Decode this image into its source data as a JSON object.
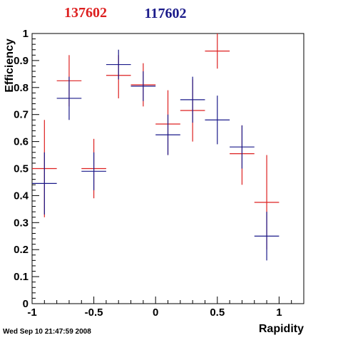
{
  "chart_data": {
    "type": "scatter",
    "title": "",
    "xlabel": "Rapidity",
    "ylabel": "Efficiency",
    "xlim": [
      -1,
      1.2
    ],
    "ylim": [
      0,
      1
    ],
    "grid": true,
    "x_ticks": [
      -1,
      -0.5,
      0,
      0.5,
      1
    ],
    "x_tick_labels": [
      "-1",
      "-0.5",
      "0",
      "0.5",
      "1"
    ],
    "y_ticks": [
      0,
      0.1,
      0.2,
      0.3,
      0.4,
      0.5,
      0.6,
      0.7,
      0.8,
      0.9,
      1
    ],
    "y_tick_labels": [
      "0",
      "0.1",
      "0.2",
      "0.3",
      "0.4",
      "0.5",
      "0.6",
      "0.7",
      "0.8",
      "0.9",
      "1"
    ],
    "legend_placement": "top",
    "series": [
      {
        "name": "137602",
        "color": "#dd2020",
        "points": [
          {
            "x": -0.9,
            "y": 0.5,
            "xerr": 0.1,
            "ylow": 0.32,
            "yhigh": 0.68
          },
          {
            "x": -0.7,
            "y": 0.825,
            "xerr": 0.1,
            "ylow": 0.73,
            "yhigh": 0.92
          },
          {
            "x": -0.5,
            "y": 0.5,
            "xerr": 0.1,
            "ylow": 0.39,
            "yhigh": 0.61
          },
          {
            "x": -0.3,
            "y": 0.845,
            "xerr": 0.1,
            "ylow": 0.76,
            "yhigh": 0.92
          },
          {
            "x": -0.1,
            "y": 0.81,
            "xerr": 0.1,
            "ylow": 0.73,
            "yhigh": 0.89
          },
          {
            "x": 0.1,
            "y": 0.665,
            "xerr": 0.1,
            "ylow": 0.55,
            "yhigh": 0.79
          },
          {
            "x": 0.3,
            "y": 0.715,
            "xerr": 0.1,
            "ylow": 0.6,
            "yhigh": 0.83
          },
          {
            "x": 0.5,
            "y": 0.935,
            "xerr": 0.1,
            "ylow": 0.87,
            "yhigh": 1.0
          },
          {
            "x": 0.7,
            "y": 0.555,
            "xerr": 0.1,
            "ylow": 0.44,
            "yhigh": 0.66
          },
          {
            "x": 0.9,
            "y": 0.375,
            "xerr": 0.1,
            "ylow": 0.2,
            "yhigh": 0.55
          }
        ]
      },
      {
        "name": "117602",
        "color": "#1a1a8a",
        "points": [
          {
            "x": -0.9,
            "y": 0.445,
            "xerr": 0.1,
            "ylow": 0.33,
            "yhigh": 0.56
          },
          {
            "x": -0.7,
            "y": 0.76,
            "xerr": 0.1,
            "ylow": 0.68,
            "yhigh": 0.84
          },
          {
            "x": -0.5,
            "y": 0.49,
            "xerr": 0.1,
            "ylow": 0.42,
            "yhigh": 0.56
          },
          {
            "x": -0.3,
            "y": 0.885,
            "xerr": 0.1,
            "ylow": 0.83,
            "yhigh": 0.94
          },
          {
            "x": -0.1,
            "y": 0.805,
            "xerr": 0.1,
            "ylow": 0.75,
            "yhigh": 0.86
          },
          {
            "x": 0.1,
            "y": 0.625,
            "xerr": 0.1,
            "ylow": 0.55,
            "yhigh": 0.7
          },
          {
            "x": 0.3,
            "y": 0.755,
            "xerr": 0.1,
            "ylow": 0.67,
            "yhigh": 0.84
          },
          {
            "x": 0.5,
            "y": 0.68,
            "xerr": 0.1,
            "ylow": 0.59,
            "yhigh": 0.77
          },
          {
            "x": 0.7,
            "y": 0.58,
            "xerr": 0.1,
            "ylow": 0.5,
            "yhigh": 0.66
          },
          {
            "x": 0.9,
            "y": 0.25,
            "xerr": 0.1,
            "ylow": 0.16,
            "yhigh": 0.34
          }
        ]
      }
    ],
    "labels": {
      "red_run": "137602",
      "blue_run": "117602",
      "timestamp": "Wed Sep 10 21:47:59 2008"
    }
  }
}
